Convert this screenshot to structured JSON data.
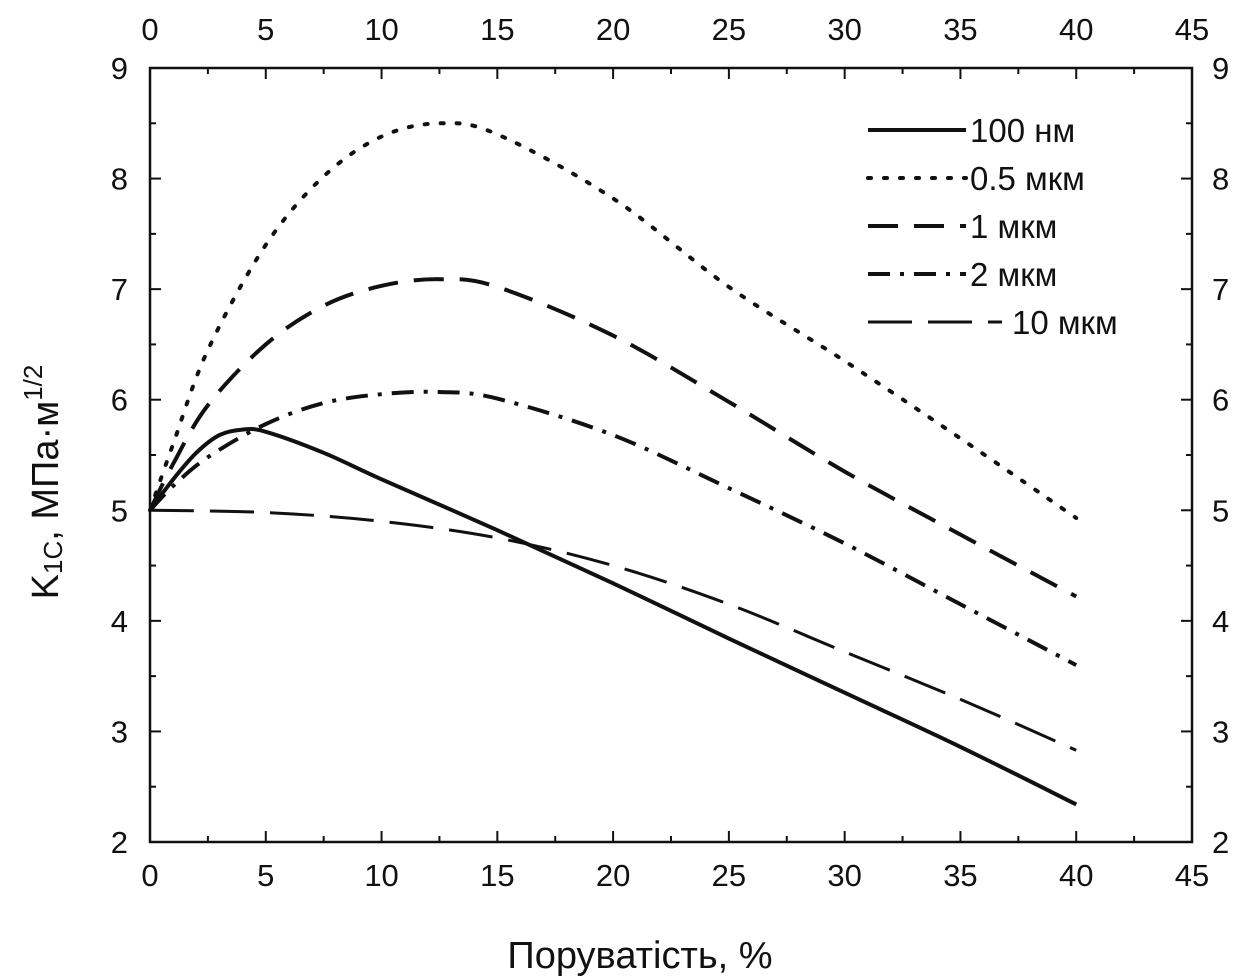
{
  "chart_data": {
    "type": "line",
    "title": "",
    "xlabel": "Поруватість, %",
    "ylabel": {
      "main": "K",
      "sub": "1C",
      "rest": ", МПа·м",
      "sup": "1/2"
    },
    "xlim": [
      0,
      45
    ],
    "ylim": [
      2,
      9
    ],
    "x_ticks": [
      0,
      5,
      10,
      15,
      20,
      25,
      30,
      35,
      40,
      45
    ],
    "y_ticks": [
      2,
      3,
      4,
      5,
      6,
      7,
      8,
      9
    ],
    "x_tick_labels": [
      "0",
      "5",
      "10",
      "15",
      "20",
      "25",
      "30",
      "35",
      "40",
      "45"
    ],
    "y_tick_labels": [
      "2",
      "3",
      "4",
      "5",
      "6",
      "7",
      "8",
      "9"
    ],
    "mirror_axes": true,
    "grid": false,
    "legend_position": "top-right",
    "series": [
      {
        "name": "100 нм",
        "style": "solid",
        "x": [
          0,
          1,
          2,
          3,
          4,
          5,
          7.5,
          10,
          15,
          20,
          25,
          30,
          35,
          40
        ],
        "y": [
          5.0,
          5.28,
          5.52,
          5.68,
          5.73,
          5.71,
          5.52,
          5.28,
          4.82,
          4.34,
          3.84,
          3.35,
          2.86,
          2.34
        ]
      },
      {
        "name": "0.5 мкм",
        "style": "dotted",
        "x": [
          0,
          1,
          2.5,
          5,
          7.5,
          10,
          12.5,
          15,
          20,
          25,
          30,
          35,
          40
        ],
        "y": [
          5.0,
          5.6,
          6.45,
          7.4,
          8.02,
          8.38,
          8.5,
          8.4,
          7.82,
          7.02,
          6.35,
          5.65,
          4.93
        ]
      },
      {
        "name": "1 мкм",
        "style": "dashed",
        "x": [
          0,
          1,
          2.5,
          5,
          7.5,
          10,
          12.5,
          15,
          20,
          25,
          30,
          35,
          40
        ],
        "y": [
          5.0,
          5.42,
          5.95,
          6.5,
          6.85,
          7.03,
          7.09,
          7.02,
          6.58,
          5.98,
          5.35,
          4.78,
          4.22
        ]
      },
      {
        "name": "2 мкм",
        "style": "dashdot",
        "x": [
          0,
          1,
          2.5,
          5,
          7.5,
          10,
          12.5,
          15,
          20,
          25,
          30,
          35,
          40
        ],
        "y": [
          5.0,
          5.22,
          5.48,
          5.78,
          5.97,
          6.05,
          6.07,
          6.01,
          5.68,
          5.2,
          4.7,
          4.15,
          3.6
        ]
      },
      {
        "name": "10 мкм",
        "style": "longdash",
        "x": [
          0,
          5,
          10,
          15,
          20,
          25,
          30,
          35,
          40
        ],
        "y": [
          5.0,
          4.98,
          4.9,
          4.75,
          4.5,
          4.15,
          3.72,
          3.29,
          2.83
        ]
      }
    ]
  }
}
